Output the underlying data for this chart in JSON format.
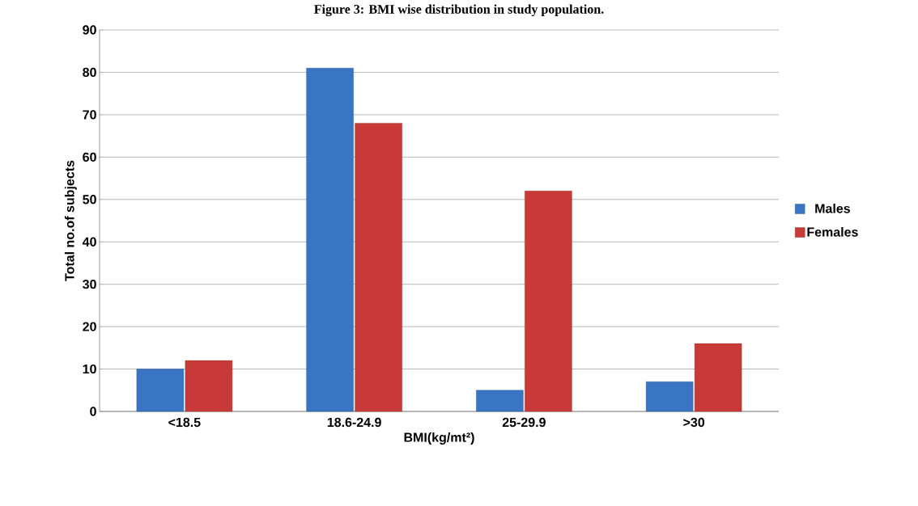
{
  "chart_data": {
    "type": "bar",
    "title": "Figure 3: BMI wise distribution in study population.",
    "xlabel": "BMI(kg/mt²)",
    "ylabel": "Total no.of subjects",
    "categories": [
      "<18.5",
      "18.6-24.9",
      "25-29.9",
      ">30"
    ],
    "series": [
      {
        "name": "Males",
        "color": "#3a75c4",
        "values": [
          10,
          81,
          5,
          7
        ]
      },
      {
        "name": "Females",
        "color": "#c83a38",
        "values": [
          12,
          68,
          52,
          16
        ]
      }
    ],
    "ylim": [
      0,
      90
    ],
    "yticks": [
      0,
      10,
      20,
      30,
      40,
      50,
      60,
      70,
      80,
      90
    ],
    "grid": "y",
    "legend": "right"
  }
}
